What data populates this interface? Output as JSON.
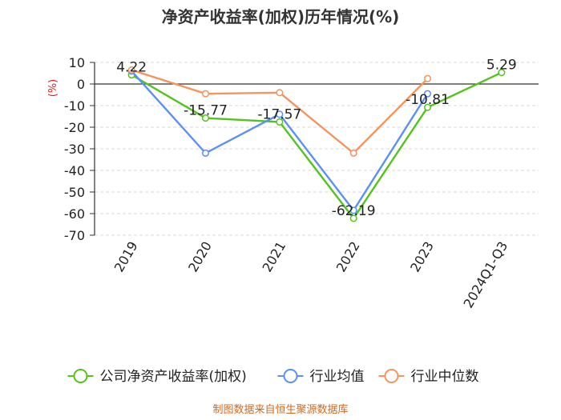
{
  "chart_data": {
    "type": "line",
    "title": "净资产收益率(加权)历年情况(%)",
    "ylabel": "(%)",
    "categories": [
      "2019",
      "2020",
      "2021",
      "2022",
      "2023",
      "2024Q1-Q3"
    ],
    "ylim": [
      -70,
      10
    ],
    "yticks": [
      10,
      0,
      -10,
      -20,
      -30,
      -40,
      -50,
      -60,
      -70
    ],
    "grid": true,
    "legend_position": "bottom",
    "series": [
      {
        "name": "公司净资产收益率(加权)",
        "color": "#52c41a",
        "values": [
          4.22,
          -15.77,
          -17.57,
          -62.19,
          -10.81,
          5.29
        ],
        "labels": [
          "4.22",
          "-15.77",
          "-17.57",
          "-62.19",
          "-10.81",
          "5.29"
        ]
      },
      {
        "name": "行业均值",
        "color": "#5b8ff9",
        "values": [
          6.0,
          -32.0,
          -14.0,
          -58.5,
          -4.5,
          null
        ]
      },
      {
        "name": "行业中位数",
        "color": "#f6945d",
        "values": [
          6.5,
          -4.5,
          -4.0,
          -32.0,
          2.5,
          null
        ]
      }
    ]
  },
  "footer": {
    "source": "制图数据来自恒生聚源数据库"
  }
}
